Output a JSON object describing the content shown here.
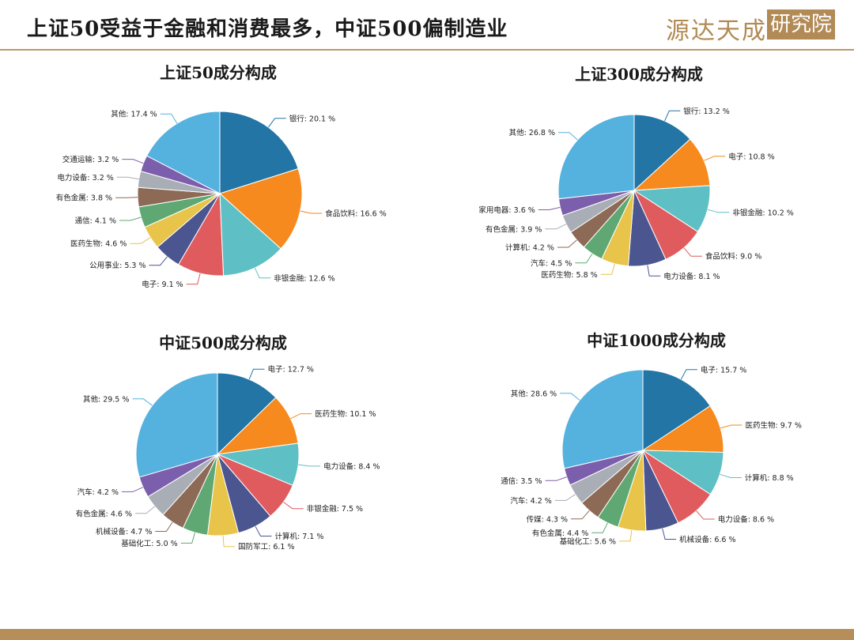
{
  "header": {
    "title": "上证50受益于金融和消费最多，中证500偏制造业",
    "logo_text": "源达天成",
    "logo_seal": "研究院"
  },
  "chart_data": [
    {
      "type": "pie",
      "title": "上证50成分构成",
      "slices": [
        {
          "label": "银行",
          "value": 20.1
        },
        {
          "label": "食品饮料",
          "value": 16.6
        },
        {
          "label": "非银金融",
          "value": 12.6
        },
        {
          "label": "电子",
          "value": 9.1
        },
        {
          "label": "公用事业",
          "value": 5.3
        },
        {
          "label": "医药生物",
          "value": 4.6
        },
        {
          "label": "通信",
          "value": 4.1
        },
        {
          "label": "有色金属",
          "value": 3.8
        },
        {
          "label": "电力设备",
          "value": 3.2
        },
        {
          "label": "交通运输",
          "value": 3.2
        },
        {
          "label": "其他",
          "value": 17.4
        }
      ]
    },
    {
      "type": "pie",
      "title": "上证300成分构成",
      "slices": [
        {
          "label": "银行",
          "value": 13.2
        },
        {
          "label": "电子",
          "value": 10.8
        },
        {
          "label": "非银金融",
          "value": 10.2
        },
        {
          "label": "食品饮料",
          "value": 9.0
        },
        {
          "label": "电力设备",
          "value": 8.1
        },
        {
          "label": "医药生物",
          "value": 5.8
        },
        {
          "label": "汽车",
          "value": 4.5
        },
        {
          "label": "计算机",
          "value": 4.2
        },
        {
          "label": "有色金属",
          "value": 3.9
        },
        {
          "label": "家用电器",
          "value": 3.6
        },
        {
          "label": "其他",
          "value": 26.8
        }
      ]
    },
    {
      "type": "pie",
      "title": "中证500成分构成",
      "slices": [
        {
          "label": "电子",
          "value": 12.7
        },
        {
          "label": "医药生物",
          "value": 10.1
        },
        {
          "label": "电力设备",
          "value": 8.4
        },
        {
          "label": "非银金融",
          "value": 7.5
        },
        {
          "label": "计算机",
          "value": 7.1
        },
        {
          "label": "国防军工",
          "value": 6.1
        },
        {
          "label": "基础化工",
          "value": 5.0
        },
        {
          "label": "机械设备",
          "value": 4.7
        },
        {
          "label": "有色金属",
          "value": 4.6
        },
        {
          "label": "汽车",
          "value": 4.2
        },
        {
          "label": "其他",
          "value": 29.5
        }
      ]
    },
    {
      "type": "pie",
      "title": "中证1000成分构成",
      "slices": [
        {
          "label": "电子",
          "value": 15.7
        },
        {
          "label": "医药生物",
          "value": 9.7
        },
        {
          "label": "计算机",
          "value": 8.8
        },
        {
          "label": "电力设备",
          "value": 8.6
        },
        {
          "label": "机械设备",
          "value": 6.6
        },
        {
          "label": "基础化工",
          "value": 5.6
        },
        {
          "label": "有色金属",
          "value": 4.4
        },
        {
          "label": "传媒",
          "value": 4.3
        },
        {
          "label": "汽车",
          "value": 4.2
        },
        {
          "label": "通信",
          "value": 3.5
        },
        {
          "label": "其他",
          "value": 28.6
        }
      ]
    }
  ],
  "colors": [
    "#2275a5",
    "#f68a1e",
    "#5ec0c4",
    "#e05b5e",
    "#4b5590",
    "#e8c44a",
    "#5fa873",
    "#8d6a55",
    "#a8adb6",
    "#7c5fac",
    "#55b1de"
  ],
  "value_suffix": " %"
}
